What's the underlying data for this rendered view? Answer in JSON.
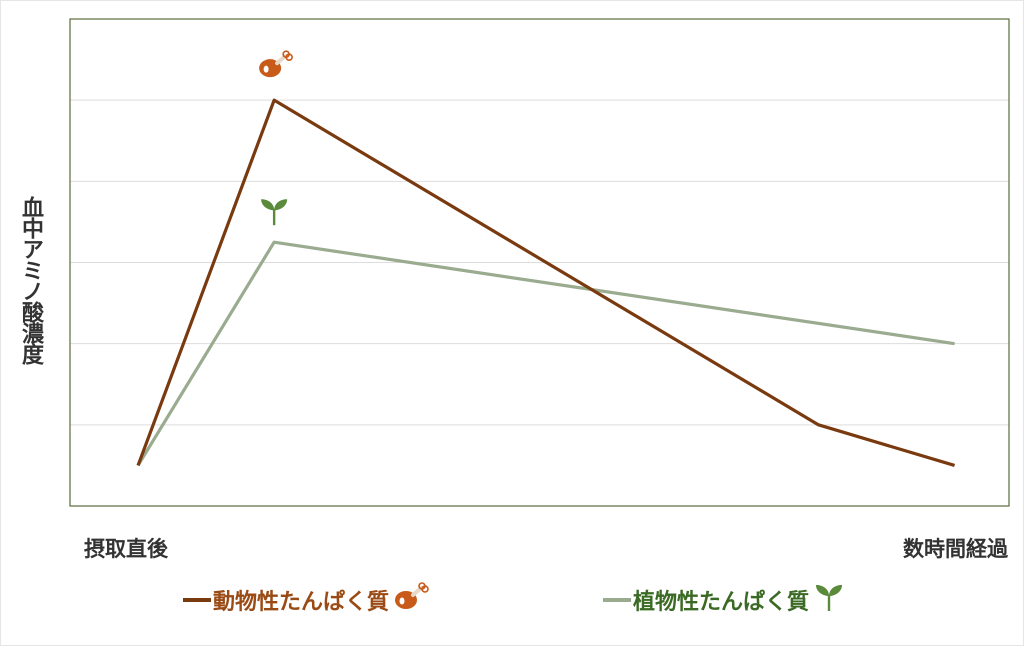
{
  "chart_data": {
    "type": "line",
    "title": "",
    "ylabel": "血中アミノ酸濃度",
    "xlabel": "",
    "x_tick_labels": [
      "摂取直後",
      "数時間経過"
    ],
    "grid": true,
    "y_ticks_shown": false,
    "ylim": [
      0,
      6
    ],
    "legend_position": "bottom",
    "series": [
      {
        "name": "動物性たんぱく質",
        "color": "#7a3a10",
        "icon": "chicken-leg-icon",
        "points": [
          [
            0.5,
            0.5
          ],
          [
            1.5,
            5.0
          ],
          [
            5.5,
            1.0
          ],
          [
            6.5,
            0.5
          ]
        ]
      },
      {
        "name": "植物性たんぱく質",
        "color": "#9aab90",
        "icon": "sprout-icon",
        "points": [
          [
            0.5,
            0.5
          ],
          [
            1.5,
            3.25
          ],
          [
            6.5,
            2.0
          ]
        ]
      }
    ],
    "xlim": [
      0,
      6.9
    ]
  },
  "legend": {
    "animal_label": "動物性たんぱく質",
    "animal_color": "#9a4a14",
    "plant_label": "植物性たんぱく質",
    "plant_color": "#3a6a24"
  },
  "colors": {
    "frame": "#5b6b3e",
    "grid": "#dddddd",
    "chicken": "#c85a1a",
    "sprout": "#5a8a3a"
  }
}
